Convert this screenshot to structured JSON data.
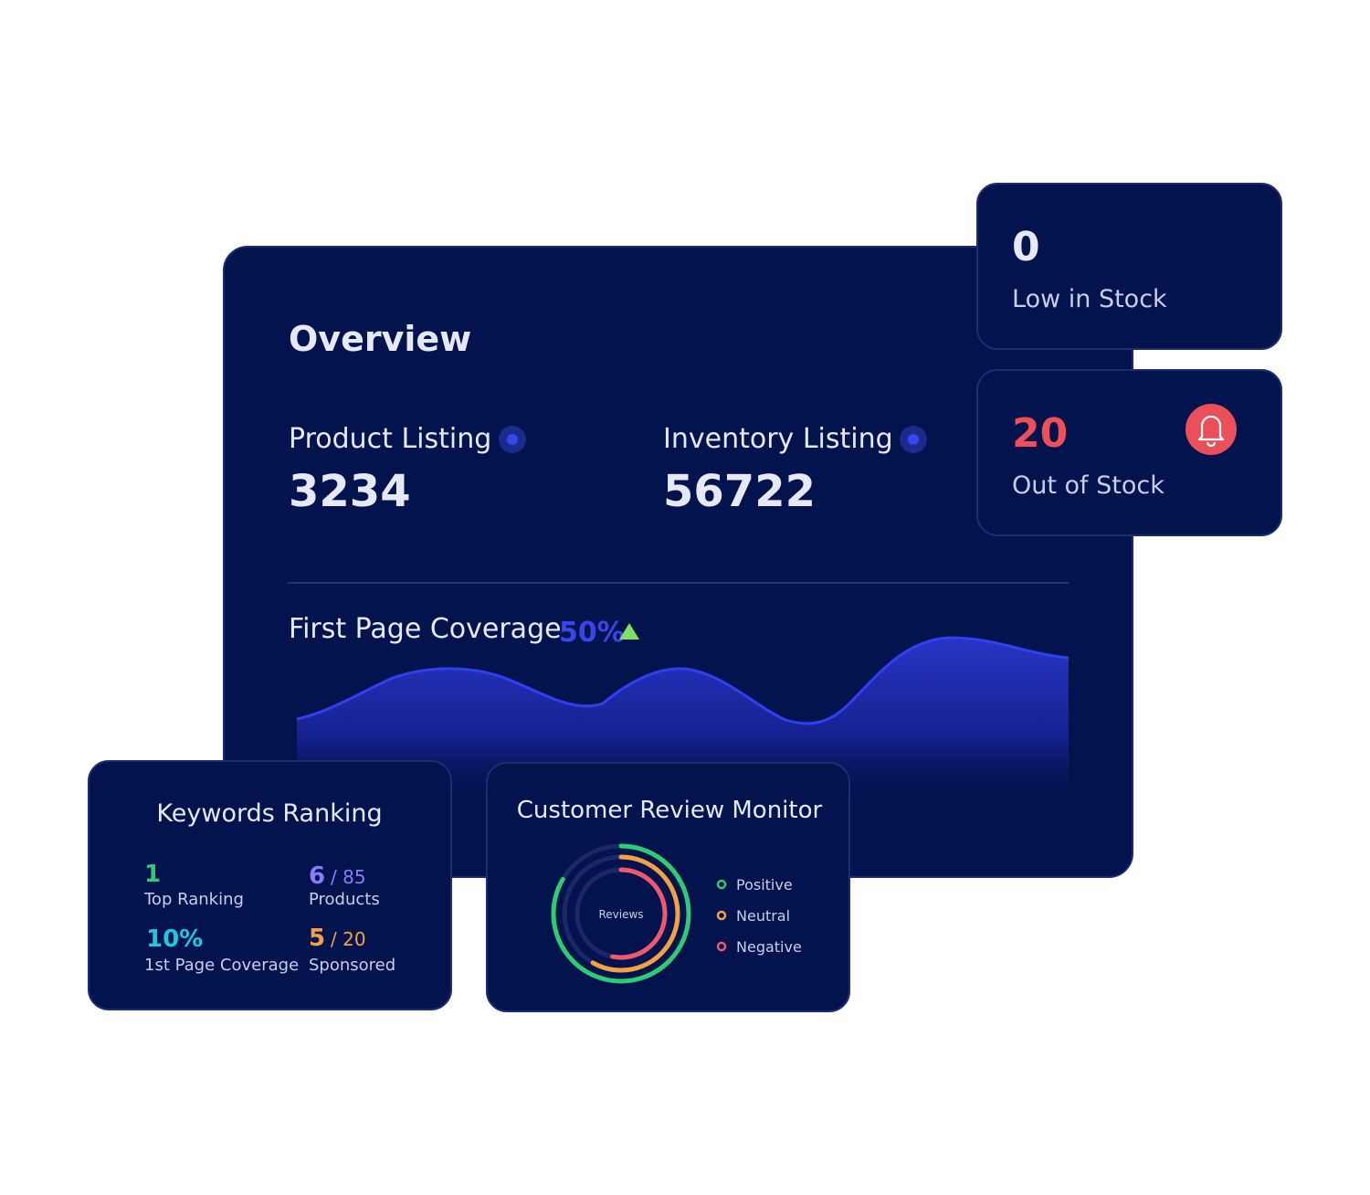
{
  "overview": {
    "title": "Overview",
    "product_listing": {
      "label": "Product Listing",
      "value": "3234"
    },
    "inventory_listing": {
      "label": "Inventory Listing",
      "value": "56722"
    },
    "coverage": {
      "label": "First Page Coverage",
      "value": "50%"
    }
  },
  "low_stock": {
    "value": "0",
    "label": "Low in Stock"
  },
  "out_of_stock": {
    "value": "20",
    "label": "Out of Stock"
  },
  "keywords": {
    "title": "Keywords Ranking",
    "items": [
      {
        "value": "1",
        "label": "Top Ranking"
      },
      {
        "value": "6",
        "total": "/ 85",
        "label": "Products"
      },
      {
        "value": "10%",
        "label": "1st Page Coverage"
      },
      {
        "value": "5",
        "total": "/ 20",
        "label": "Sponsored"
      }
    ]
  },
  "reviews": {
    "title": "Customer Review Monitor",
    "center": "Reviews",
    "legend": [
      "Positive",
      "Neutral",
      "Negative"
    ]
  }
}
